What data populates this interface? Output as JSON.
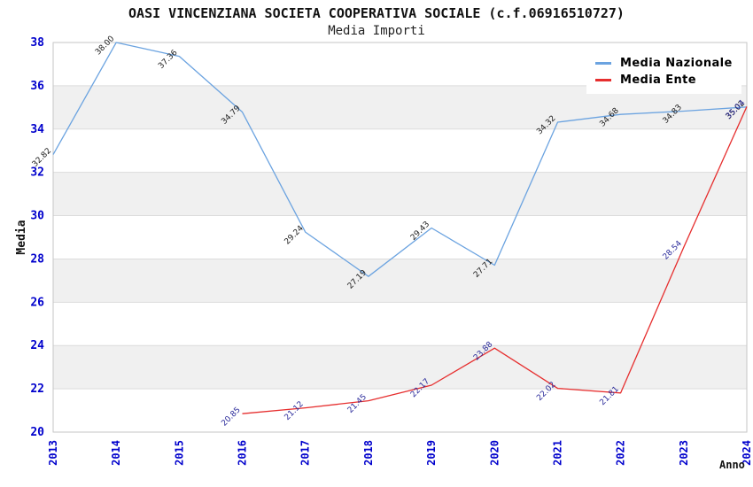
{
  "chart_data": {
    "type": "line",
    "title": "OASI VINCENZIANA SOCIETA COOPERATIVA SOCIALE (c.f.06916510727)",
    "subtitle": "Media Importi",
    "xlabel": "Anno",
    "ylabel": "Media",
    "x": [
      "2013",
      "2014",
      "2015",
      "2016",
      "2017",
      "2018",
      "2019",
      "2020",
      "2021",
      "2022",
      "2023",
      "2024"
    ],
    "series": [
      {
        "name": "Media Nazionale",
        "color": "#6BA3E0",
        "label_color": "#1A1A1A",
        "values": [
          32.82,
          38.0,
          37.36,
          34.79,
          29.24,
          27.19,
          29.43,
          27.71,
          34.32,
          34.68,
          34.83,
          35.02
        ]
      },
      {
        "name": "Media Ente",
        "color": "#E62E2E",
        "label_color": "#2B2B9B",
        "values": [
          null,
          null,
          null,
          20.85,
          21.12,
          21.45,
          22.17,
          23.88,
          22.02,
          21.81,
          28.54,
          35.04
        ]
      }
    ],
    "ylim": [
      20,
      38
    ],
    "ytick_step": 2,
    "grid": "horizontal",
    "legend_position": "top-right",
    "tick_color": "#0000CC",
    "grid_color": "#DCDCDC",
    "border_color": "#C6C6C6",
    "band_colors": [
      "#FFFFFF",
      "#F0F0F0"
    ],
    "axis_title_color": "#111111"
  }
}
